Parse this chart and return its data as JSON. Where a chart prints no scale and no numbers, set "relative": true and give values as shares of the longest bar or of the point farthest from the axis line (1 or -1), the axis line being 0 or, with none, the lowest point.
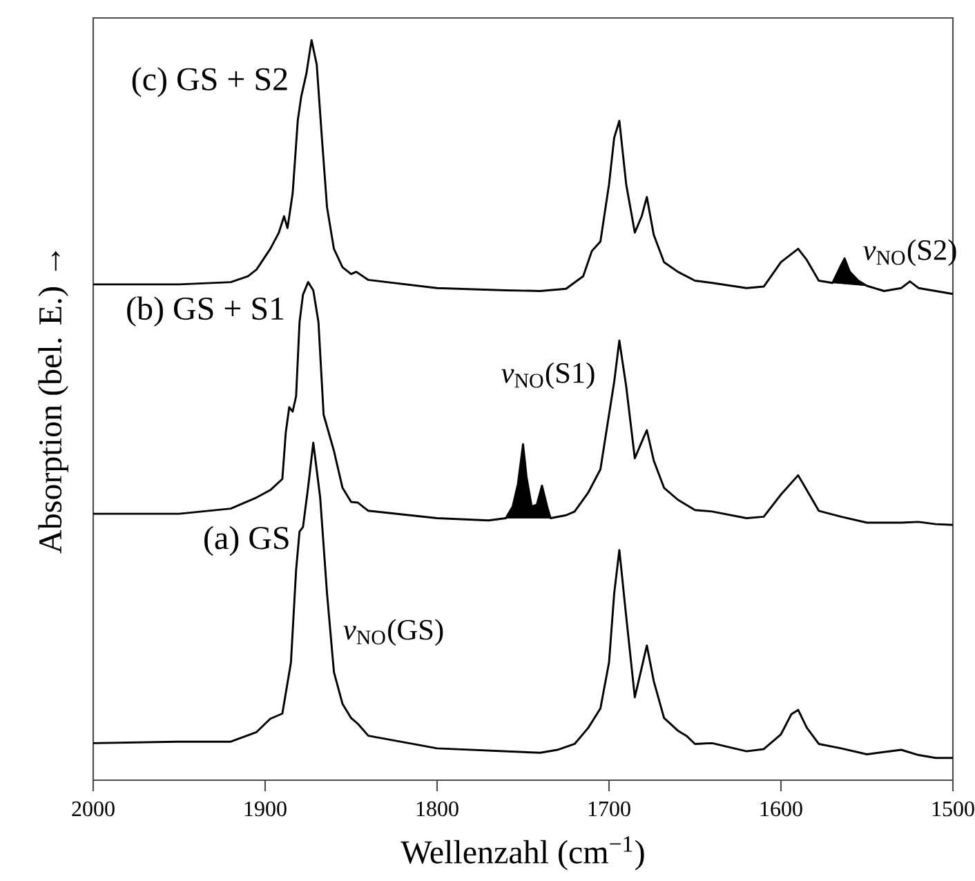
{
  "chart_data": {
    "type": "line",
    "relative": true,
    "xlabel": "Wellenzahl  (cm$^{−1}$)",
    "ylabel": "Absorption  (bel. E.)  →",
    "xlim": [
      2000,
      1500
    ],
    "xticks": [
      2000,
      1900,
      1800,
      1700,
      1600,
      1500
    ],
    "annotations": [
      "*ν*$_{NO}$(GS)",
      "*ν*$_{NO}$(S1)",
      "*ν*$_{NO}$(S2)"
    ],
    "series": [
      {
        "type": "area",
        "color": "#000000",
        "x": [
          1760,
          1756,
          1753,
          1750,
          1748,
          1745,
          1742,
          1739,
          1736,
          1734
        ],
        "values": [
          0.354,
          0.37,
          0.4,
          0.454,
          0.41,
          0.37,
          0.372,
          0.398,
          0.37,
          0.354
        ]
      },
      {
        "type": "area",
        "color": "#000000",
        "x": [
          1570,
          1565,
          1563,
          1560,
          1555,
          1550
        ],
        "values": [
          0.672,
          0.696,
          0.705,
          0.687,
          0.675,
          0.668
        ]
      },
      {
        "name": "(a) GS",
        "color": "#000000",
        "x": [
          2000,
          1950,
          1920,
          1905,
          1897,
          1890,
          1885,
          1882,
          1880,
          1878,
          1875,
          1872,
          1868,
          1864,
          1860,
          1855,
          1850,
          1846,
          1840,
          1800,
          1760,
          1740,
          1730,
          1720,
          1712,
          1705,
          1700,
          1697,
          1694,
          1690,
          1685,
          1681,
          1678,
          1674,
          1668,
          1660,
          1655,
          1650,
          1640,
          1620,
          1610,
          1600,
          1594,
          1590,
          1585,
          1578,
          1565,
          1550,
          1530,
          1520,
          1510,
          1500
        ],
        "values": [
          0.05,
          0.052,
          0.052,
          0.065,
          0.083,
          0.09,
          0.159,
          0.284,
          0.336,
          0.342,
          0.396,
          0.456,
          0.382,
          0.252,
          0.146,
          0.103,
          0.084,
          0.076,
          0.06,
          0.043,
          0.039,
          0.037,
          0.041,
          0.049,
          0.071,
          0.097,
          0.159,
          0.252,
          0.311,
          0.221,
          0.112,
          0.152,
          0.182,
          0.134,
          0.084,
          0.067,
          0.06,
          0.049,
          0.05,
          0.039,
          0.042,
          0.062,
          0.089,
          0.095,
          0.071,
          0.049,
          0.043,
          0.035,
          0.041,
          0.034,
          0.03,
          0.03
        ]
      },
      {
        "name": "(b) GS + S1",
        "color": "#000000",
        "x": [
          2000,
          1950,
          1920,
          1905,
          1897,
          1890,
          1888,
          1886,
          1884,
          1882,
          1880,
          1878,
          1875,
          1872,
          1869,
          1866,
          1860,
          1855,
          1850,
          1846,
          1840,
          1800,
          1770,
          1760,
          1756,
          1753,
          1750,
          1748,
          1745,
          1742,
          1739,
          1736,
          1734,
          1725,
          1720,
          1712,
          1705,
          1700,
          1697,
          1694,
          1690,
          1685,
          1681,
          1678,
          1674,
          1668,
          1660,
          1650,
          1640,
          1620,
          1610,
          1600,
          1590,
          1585,
          1578,
          1565,
          1550,
          1530,
          1520,
          1510,
          1500
        ],
        "values": [
          0.36,
          0.36,
          0.367,
          0.382,
          0.392,
          0.407,
          0.47,
          0.504,
          0.498,
          0.519,
          0.619,
          0.656,
          0.673,
          0.662,
          0.619,
          0.494,
          0.445,
          0.395,
          0.376,
          0.375,
          0.364,
          0.354,
          0.351,
          0.354,
          0.37,
          0.4,
          0.454,
          0.41,
          0.37,
          0.372,
          0.398,
          0.37,
          0.354,
          0.358,
          0.363,
          0.389,
          0.42,
          0.494,
          0.538,
          0.594,
          0.532,
          0.435,
          0.457,
          0.473,
          0.432,
          0.395,
          0.379,
          0.365,
          0.363,
          0.354,
          0.356,
          0.386,
          0.412,
          0.392,
          0.364,
          0.356,
          0.348,
          0.348,
          0.349,
          0.346,
          0.345
        ]
      },
      {
        "name": "(c) GS + S2",
        "color": "#000000",
        "x": [
          2000,
          1950,
          1920,
          1910,
          1905,
          1897,
          1892,
          1889,
          1887,
          1884,
          1881,
          1879,
          1876,
          1873,
          1870,
          1867,
          1864,
          1860,
          1855,
          1850,
          1847,
          1840,
          1800,
          1760,
          1740,
          1725,
          1715,
          1710,
          1705,
          1700,
          1697,
          1694,
          1690,
          1685,
          1681,
          1678,
          1674,
          1668,
          1660,
          1650,
          1640,
          1620,
          1610,
          1600,
          1590,
          1585,
          1578,
          1570,
          1565,
          1563,
          1560,
          1555,
          1550,
          1540,
          1530,
          1525,
          1520,
          1510,
          1500
        ],
        "values": [
          0.67,
          0.67,
          0.673,
          0.681,
          0.69,
          0.718,
          0.74,
          0.762,
          0.746,
          0.793,
          0.892,
          0.924,
          0.955,
          1.0,
          0.967,
          0.868,
          0.774,
          0.718,
          0.693,
          0.684,
          0.687,
          0.676,
          0.665,
          0.662,
          0.661,
          0.664,
          0.681,
          0.715,
          0.728,
          0.805,
          0.868,
          0.891,
          0.805,
          0.74,
          0.762,
          0.788,
          0.737,
          0.7,
          0.687,
          0.675,
          0.672,
          0.665,
          0.667,
          0.7,
          0.718,
          0.703,
          0.675,
          0.672,
          0.696,
          0.705,
          0.687,
          0.675,
          0.668,
          0.661,
          0.665,
          0.674,
          0.665,
          0.661,
          0.657
        ]
      }
    ]
  }
}
